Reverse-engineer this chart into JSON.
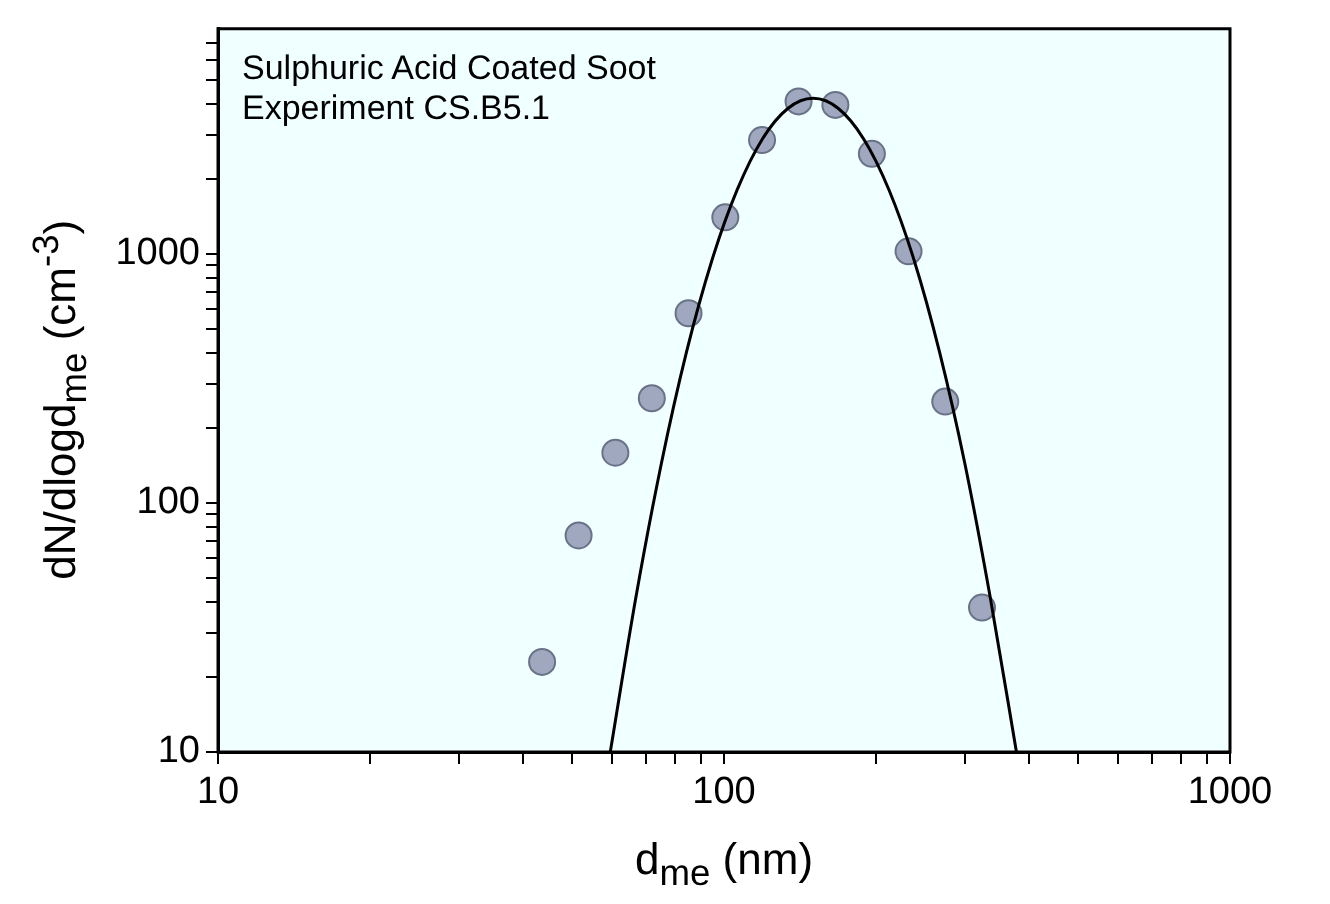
{
  "chart_data": {
    "type": "scatter",
    "xlabel": "d$_{me}$ (nm)",
    "ylabel": "dN/dlogd$_{me}$ (cm$^{-3}$)",
    "annotations": [
      "Sulphuric Acid Coated Soot",
      "Experiment CS.B5.1"
    ],
    "log": "xy",
    "grid": false,
    "legend": false,
    "xlim": [
      10,
      1000
    ],
    "ylim": [
      10,
      8000
    ],
    "xticks": [
      10,
      {
        "value": 20,
        "label": null
      },
      {
        "value": 30,
        "label": null
      },
      {
        "value": 40,
        "label": null
      },
      {
        "value": 50,
        "label": null
      },
      {
        "value": 60,
        "label": null
      },
      {
        "value": 70,
        "label": null
      },
      {
        "value": 80,
        "label": null
      },
      {
        "value": 90,
        "label": null
      },
      100,
      {
        "value": 200,
        "label": null
      },
      {
        "value": 300,
        "label": null
      },
      {
        "value": 400,
        "label": null
      },
      {
        "value": 500,
        "label": null
      },
      {
        "value": 600,
        "label": null
      },
      {
        "value": 700,
        "label": null
      },
      {
        "value": 800,
        "label": null
      },
      {
        "value": 900,
        "label": null
      },
      1000
    ],
    "yticks": [
      10,
      {
        "value": 20,
        "label": null
      },
      {
        "value": 30,
        "label": null
      },
      {
        "value": 40,
        "label": null
      },
      {
        "value": 50,
        "label": null
      },
      {
        "value": 60,
        "label": null
      },
      {
        "value": 70,
        "label": null
      },
      {
        "value": 80,
        "label": null
      },
      {
        "value": 90,
        "label": null
      },
      100,
      {
        "value": 200,
        "label": null
      },
      {
        "value": 300,
        "label": null
      },
      {
        "value": 400,
        "label": null
      },
      {
        "value": 500,
        "label": null
      },
      {
        "value": 600,
        "label": null
      },
      {
        "value": 700,
        "label": null
      },
      {
        "value": 800,
        "label": null
      },
      {
        "value": 900,
        "label": null
      },
      1000,
      {
        "value": 2000,
        "label": null
      },
      {
        "value": 3000,
        "label": null
      },
      {
        "value": 4000,
        "label": null
      },
      {
        "value": 5000,
        "label": null
      },
      {
        "value": 6000,
        "label": null
      },
      {
        "value": 7000,
        "label": null
      }
    ],
    "series": [
      {
        "type": "scatter",
        "color": "#a0a8c0",
        "marker": "circle",
        "x": [
          43.7,
          51.6,
          61,
          72,
          85.1,
          100.6,
          118.9,
          140.4,
          166,
          196,
          231.6,
          273.7,
          323.5
        ],
        "values": [
          23,
          74,
          159,
          263,
          577,
          1400,
          2860,
          4090,
          3960,
          2520,
          1023,
          255,
          38
        ]
      },
      {
        "type": "line",
        "color": "#000000",
        "marker": "none",
        "line_style": "solid",
        "x": [
          59.6,
          67,
          75.2,
          84.3,
          94.6,
          106.2,
          119.1,
          133.7,
          150,
          168.3,
          188.8,
          211.8,
          237.7,
          266.7,
          299.2,
          335.7,
          378.4
        ],
        "values": [
          10,
          42,
          144,
          403,
          938,
          1808,
          2891,
          3830,
          4207,
          3830,
          2891,
          1808,
          938,
          403,
          144,
          42,
          10
        ]
      }
    ]
  }
}
